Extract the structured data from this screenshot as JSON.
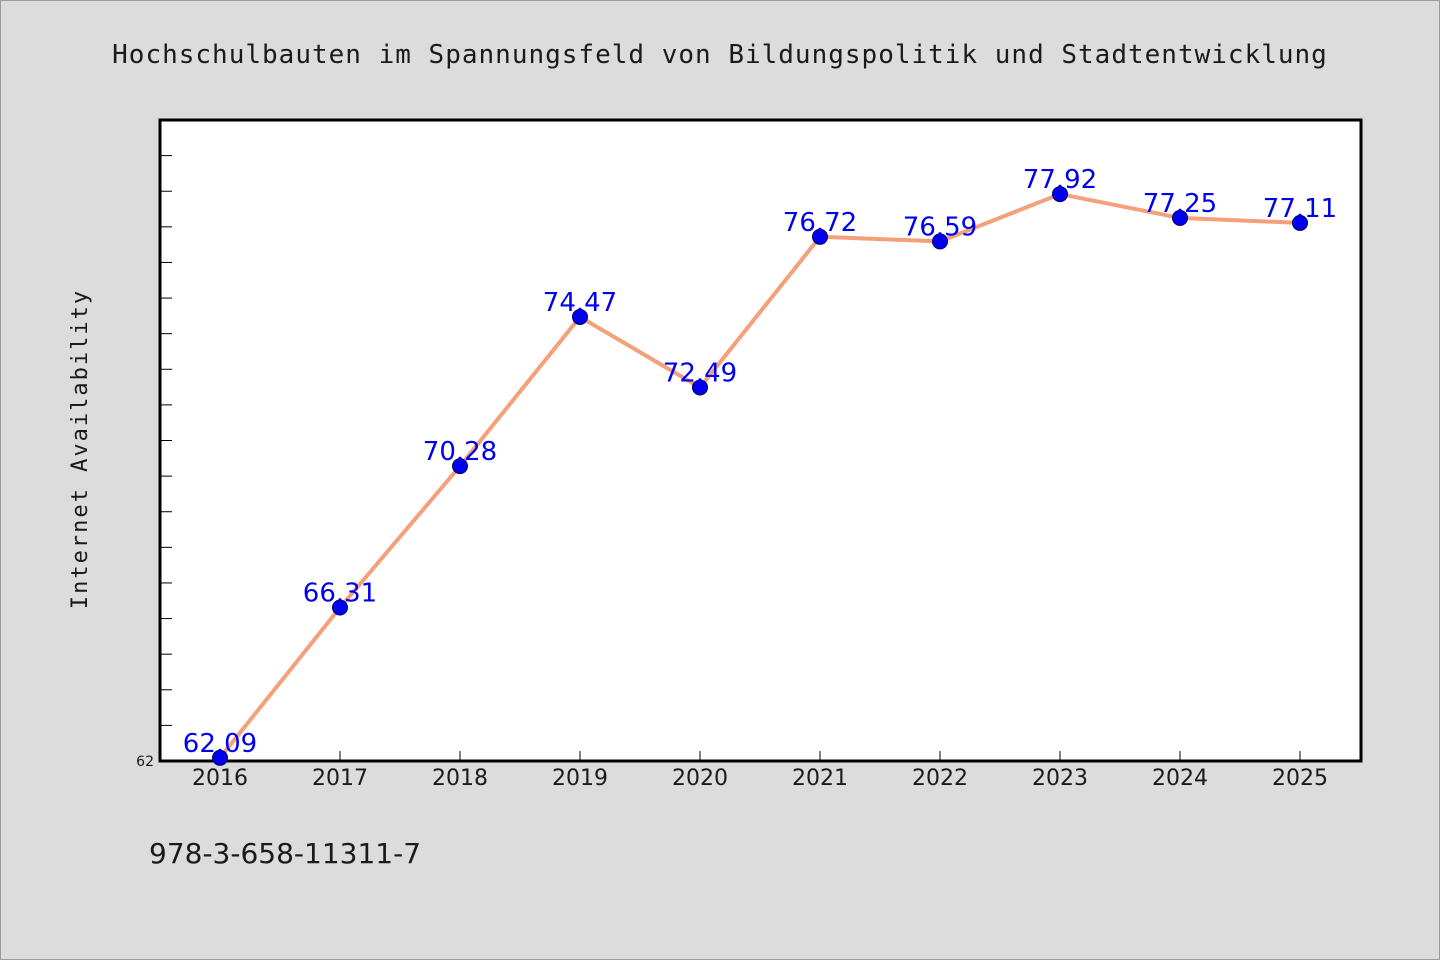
{
  "chart_data": {
    "type": "line",
    "title": "Hochschulbauten im Spannungsfeld von Bildungspolitik und Stadtentwicklung",
    "xlabel": "",
    "ylabel": "Internet Availability",
    "categories": [
      "2016",
      "2017",
      "2018",
      "2019",
      "2020",
      "2021",
      "2022",
      "2023",
      "2024",
      "2025"
    ],
    "series": [
      {
        "values": [
          62.09,
          66.31,
          70.28,
          74.47,
          72.49,
          76.72,
          76.59,
          77.92,
          77.25,
          77.11
        ]
      }
    ],
    "ylim": [
      62,
      80
    ],
    "y_tick_labels": [
      "62"
    ],
    "grid": false,
    "data_labels": true,
    "colors": {
      "line": "#f4a07a",
      "marker": "#0000ee",
      "label": "#0000ee",
      "background": "#dcdcdc",
      "plot_background": "#ffffff"
    }
  },
  "footer": {
    "text": "978-3-658-11311-7"
  }
}
